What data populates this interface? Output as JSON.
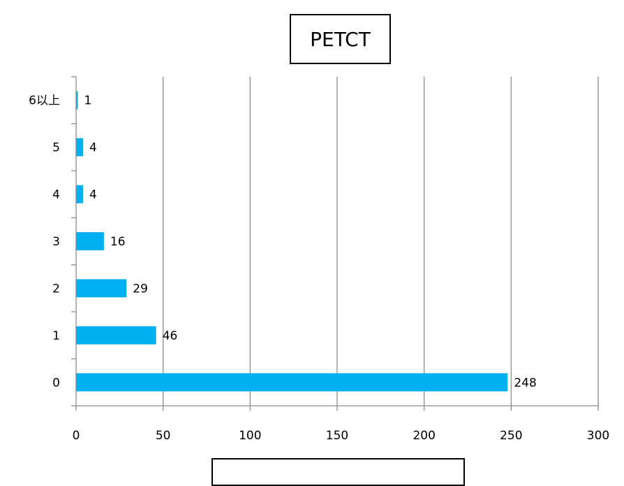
{
  "chart_data": {
    "type": "bar",
    "orientation": "horizontal",
    "title": "PETCT",
    "xlabel": "",
    "ylabel": "",
    "categories": [
      "0",
      "1",
      "2",
      "3",
      "4",
      "5",
      "6以上"
    ],
    "values": [
      248,
      46,
      29,
      16,
      4,
      4,
      1
    ],
    "xlim": [
      0,
      300
    ],
    "xticks": [
      0,
      50,
      100,
      150,
      200,
      250,
      300
    ],
    "grid": "vertical",
    "legend": "none",
    "bar_color": "#00B0F0"
  }
}
